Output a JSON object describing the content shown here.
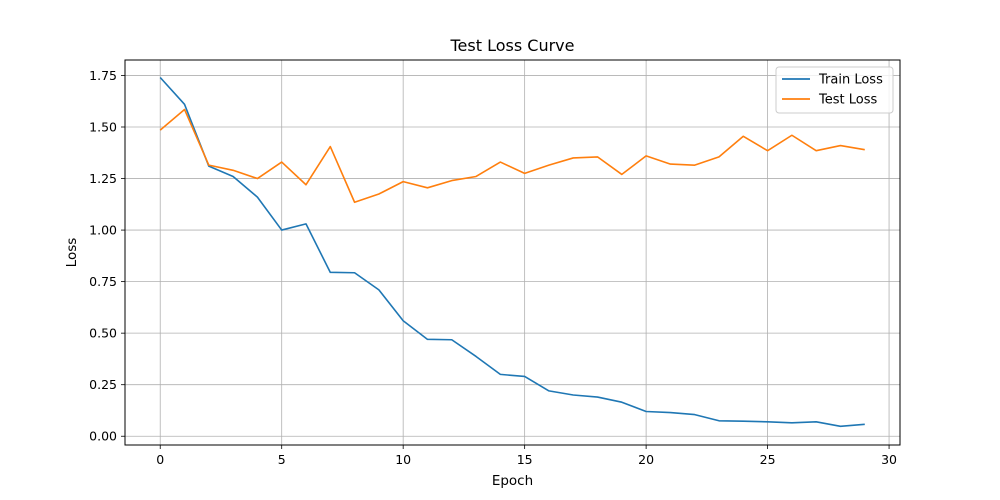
{
  "chart_data": {
    "type": "line",
    "title": "Test Loss Curve",
    "xlabel": "Epoch",
    "ylabel": "Loss",
    "xlim": [
      -1.45,
      30.45
    ],
    "ylim": [
      -0.0425,
      1.825
    ],
    "xticks": [
      0,
      5,
      10,
      15,
      20,
      25,
      30
    ],
    "yticks": [
      0.0,
      0.25,
      0.5,
      0.75,
      1.0,
      1.25,
      1.5,
      1.75
    ],
    "xtick_labels": [
      "0",
      "5",
      "10",
      "15",
      "20",
      "25",
      "30"
    ],
    "ytick_labels": [
      "0.00",
      "0.25",
      "0.50",
      "0.75",
      "1.00",
      "1.25",
      "1.50",
      "1.75"
    ],
    "grid": true,
    "legend_position": "top-right",
    "x": [
      0,
      1,
      2,
      3,
      4,
      5,
      6,
      7,
      8,
      9,
      10,
      11,
      12,
      13,
      14,
      15,
      16,
      17,
      18,
      19,
      20,
      21,
      22,
      23,
      24,
      25,
      26,
      27,
      28,
      29
    ],
    "series": [
      {
        "name": "Train Loss",
        "color": "#1f77b4",
        "values": [
          1.74,
          1.61,
          1.31,
          1.26,
          1.16,
          1.0,
          1.03,
          0.795,
          0.793,
          0.71,
          0.56,
          0.47,
          0.468,
          0.387,
          0.3,
          0.29,
          0.22,
          0.2,
          0.19,
          0.165,
          0.12,
          0.115,
          0.105,
          0.075,
          0.073,
          0.07,
          0.065,
          0.07,
          0.048,
          0.058
        ]
      },
      {
        "name": "Test Loss",
        "color": "#ff7f0e",
        "values": [
          1.485,
          1.585,
          1.315,
          1.29,
          1.25,
          1.33,
          1.22,
          1.405,
          1.135,
          1.175,
          1.235,
          1.205,
          1.24,
          1.26,
          1.33,
          1.275,
          1.315,
          1.35,
          1.355,
          1.27,
          1.36,
          1.32,
          1.315,
          1.355,
          1.455,
          1.385,
          1.46,
          1.385,
          1.41,
          1.39
        ]
      }
    ]
  }
}
